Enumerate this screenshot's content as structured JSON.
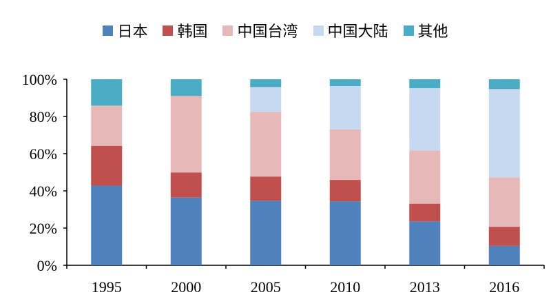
{
  "chart_data": {
    "type": "bar",
    "stacked": "percent",
    "categories": [
      "1995",
      "2000",
      "2005",
      "2010",
      "2013",
      "2016"
    ],
    "series": [
      {
        "name": "日本",
        "color": "#4F81BD",
        "values": [
          42.8,
          36.4,
          34.7,
          34.4,
          23.6,
          10.4
        ]
      },
      {
        "name": "韩国",
        "color": "#C0504D",
        "values": [
          21.4,
          13.5,
          13.0,
          11.5,
          9.5,
          10.3
        ]
      },
      {
        "name": "中国台湾",
        "color": "#E6B9B8",
        "values": [
          21.6,
          41.1,
          34.8,
          27.1,
          28.6,
          26.6
        ]
      },
      {
        "name": "中国大陆",
        "color": "#C6D9F1",
        "values": [
          0,
          0,
          13.3,
          23.3,
          33.5,
          47.4
        ]
      },
      {
        "name": "其他",
        "color": "#4BACC6",
        "values": [
          14.2,
          9.0,
          4.2,
          3.7,
          4.8,
          5.3
        ]
      }
    ],
    "yticks": [
      "0%",
      "20%",
      "40%",
      "60%",
      "80%",
      "100%"
    ],
    "ylim": [
      0,
      100
    ],
    "legend": "top",
    "grid": false
  }
}
